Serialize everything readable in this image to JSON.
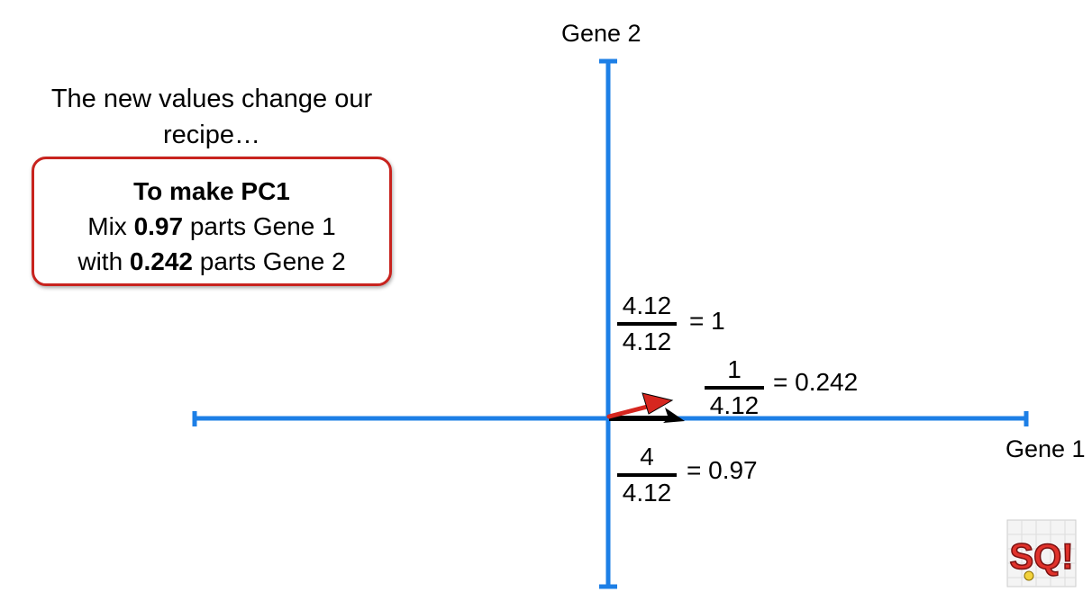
{
  "intro": {
    "line1": "The new values change our",
    "line2": "recipe…"
  },
  "recipe": {
    "title": "To make PC1",
    "line1_pre": "Mix ",
    "line1_val": "0.97",
    "line1_post": " parts Gene 1",
    "line2_pre": "with ",
    "line2_val": "0.242",
    "line2_post": " parts Gene 2"
  },
  "axes": {
    "x_label": "Gene 1",
    "y_label": "Gene 2"
  },
  "equations": {
    "top": {
      "numerator": "4.12",
      "denominator": "4.12",
      "result": "= 1"
    },
    "right": {
      "numerator": "1",
      "denominator": "4.12",
      "result": "= 0.242"
    },
    "bottom": {
      "numerator": "4",
      "denominator": "4.12",
      "result": "= 0.97"
    }
  },
  "colors": {
    "axis": "#1d7fe6",
    "recipe_border": "#c8231e",
    "vector_red": "#d6261f",
    "vector_black": "#000000"
  },
  "logo": {
    "icon": "statquest-logo-icon",
    "text": "SQ!"
  }
}
